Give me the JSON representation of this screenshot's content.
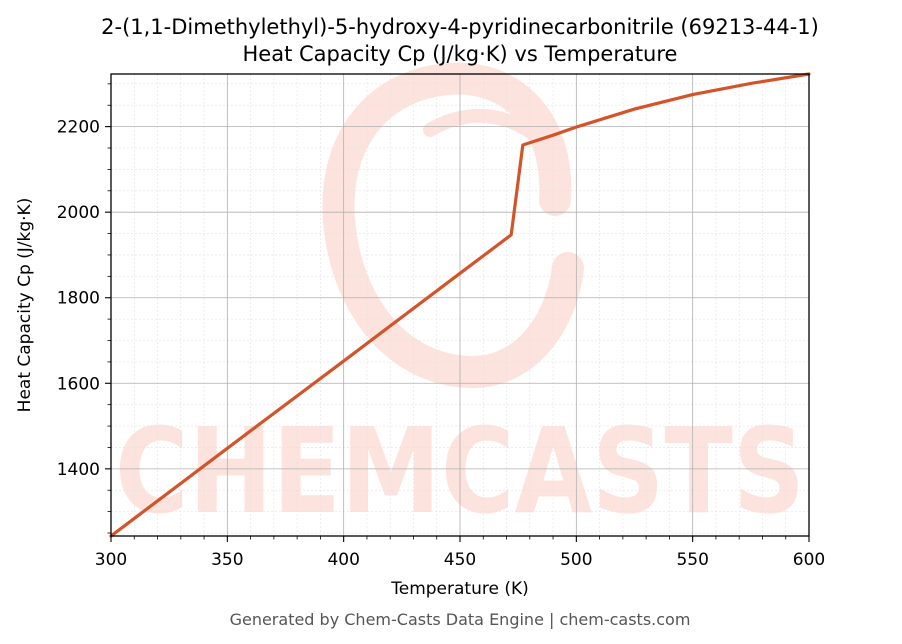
{
  "chart_data": {
    "type": "line",
    "title_line1": "2-(1,1-Dimethylethyl)-5-hydroxy-4-pyridinecarbonitrile (69213-44-1)",
    "title_line2": "Heat Capacity Cp (J/kg·K) vs Temperature",
    "xlabel": "Temperature (K)",
    "ylabel": "Heat Capacity Cp (J/kg·K)",
    "xlim": [
      300,
      600
    ],
    "ylim": [
      1243,
      2323
    ],
    "x_ticks": [
      300,
      350,
      400,
      450,
      500,
      550,
      600
    ],
    "y_ticks": [
      1400,
      1600,
      1800,
      2000,
      2200
    ],
    "grid": true,
    "series": [
      {
        "color": "#d4542a",
        "points": [
          [
            300,
            1243
          ],
          [
            350,
            1448
          ],
          [
            400,
            1652
          ],
          [
            450,
            1857
          ],
          [
            472,
            1947
          ],
          [
            477,
            2157
          ],
          [
            490,
            2180
          ],
          [
            500,
            2199
          ],
          [
            525,
            2241
          ],
          [
            550,
            2275
          ],
          [
            575,
            2301
          ],
          [
            600,
            2323
          ]
        ]
      }
    ]
  },
  "watermark": {
    "text": "CHEMCASTS",
    "color": "#fde3dd"
  },
  "footer": "Generated by Chem-Casts Data Engine | chem-casts.com"
}
